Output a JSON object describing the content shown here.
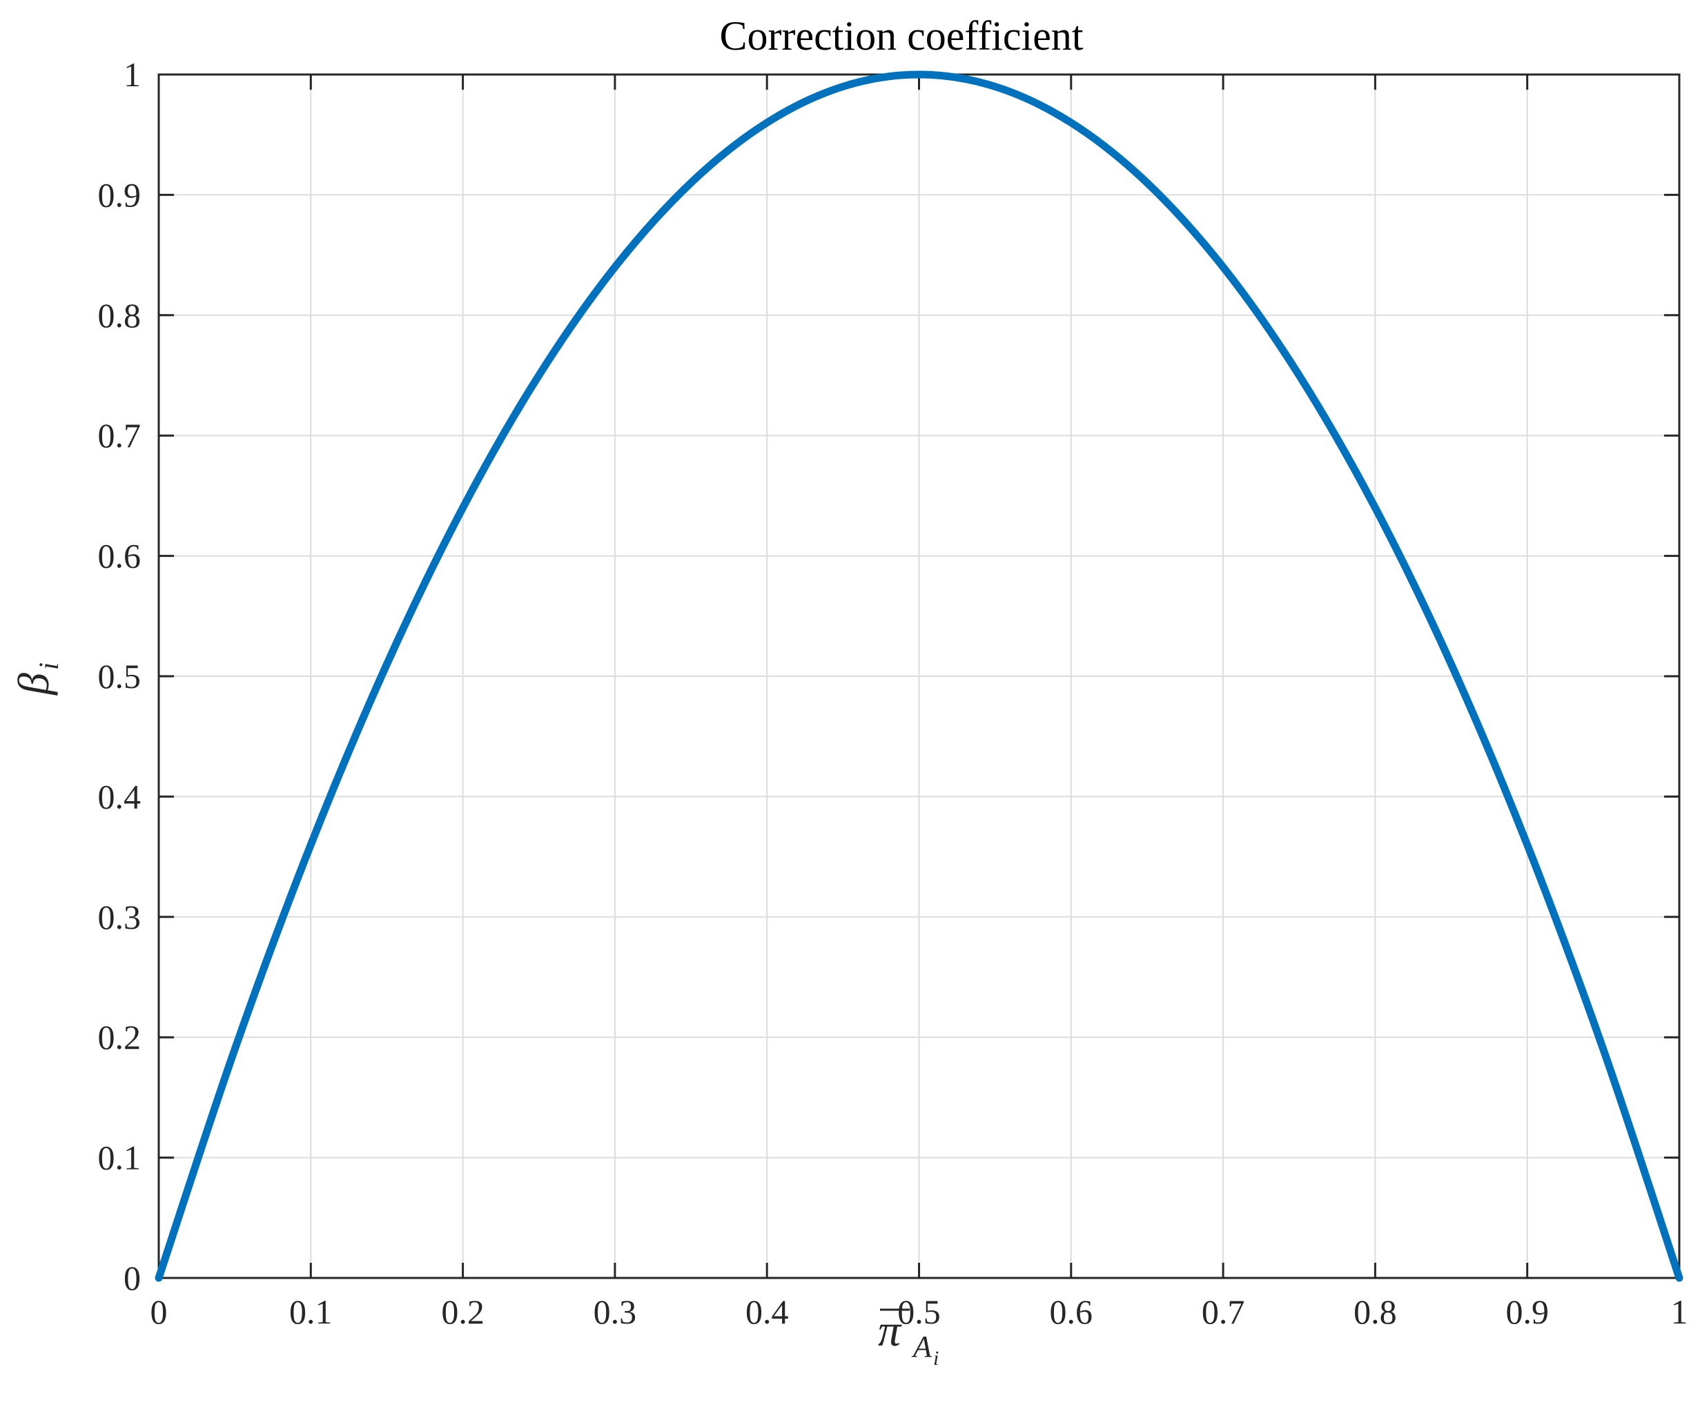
{
  "chart_data": {
    "type": "line",
    "title": "Correction coefficient",
    "xlabel": "π",
    "xlabel_subscript": "A",
    "xlabel_subscript_sub": "i",
    "ylabel": "β",
    "ylabel_subscript": "i",
    "xlim": [
      0,
      1
    ],
    "ylim": [
      0,
      1
    ],
    "xticks": [
      0,
      0.1,
      0.2,
      0.3,
      0.4,
      0.5,
      0.6,
      0.7,
      0.8,
      0.9,
      1
    ],
    "yticks": [
      0,
      0.1,
      0.2,
      0.3,
      0.4,
      0.5,
      0.6,
      0.7,
      0.8,
      0.9,
      1
    ],
    "xtick_labels": [
      "0",
      "0.1",
      "0.2",
      "0.3",
      "0.4",
      "0.5",
      "0.6",
      "0.7",
      "0.8",
      "0.9",
      "1"
    ],
    "ytick_labels": [
      "0",
      "0.1",
      "0.2",
      "0.3",
      "0.4",
      "0.5",
      "0.6",
      "0.7",
      "0.8",
      "0.9",
      "1"
    ],
    "grid": true,
    "line_color": "#0072BD",
    "series": [
      {
        "x": [
          0,
          0.05,
          0.1,
          0.15,
          0.2,
          0.25,
          0.3,
          0.35,
          0.4,
          0.45,
          0.5,
          0.55,
          0.6,
          0.65,
          0.7,
          0.75,
          0.8,
          0.85,
          0.9,
          0.95,
          1
        ],
        "y": [
          0,
          0.19,
          0.36,
          0.51,
          0.64,
          0.75,
          0.84,
          0.91,
          0.96,
          0.99,
          1,
          0.99,
          0.96,
          0.91,
          0.84,
          0.75,
          0.64,
          0.51,
          0.36,
          0.19,
          0
        ]
      }
    ]
  }
}
